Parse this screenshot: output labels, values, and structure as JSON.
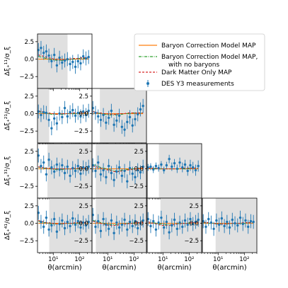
{
  "chart_data": {
    "type": "scatter",
    "title": "",
    "x_axis": {
      "label": "θ(arcmin)",
      "scale": "log",
      "range": [
        2.5,
        300
      ],
      "tick_values": [
        10,
        100
      ],
      "tick_labels": [
        "10¹",
        "10²"
      ]
    },
    "y_axis": {
      "range": [
        -4.2,
        3.6
      ],
      "tick_values": [
        2.5,
        0.0,
        -2.5
      ],
      "tick_labels": [
        "2.5",
        "0.0",
        "−2.5"
      ]
    },
    "row_labels": [
      "Δξ₊¹¹/σ_ξ",
      "Δξ₊²¹/σ_ξ",
      "Δξ₊³¹/σ_ξ",
      "Δξ₊⁴¹/σ_ξ"
    ],
    "colors": {
      "baryon": "#ff7f0e",
      "no_baryons": "#2ca02c",
      "dmo": "#d62728",
      "data": "#1f77b4",
      "shade": "#e0e0e0"
    },
    "legend": {
      "placement": "upper-right",
      "entries": [
        {
          "key": "baryon",
          "lines": [
            "Baryon Correction Model MAP"
          ]
        },
        {
          "key": "no_baryons",
          "lines": [
            "Baryon Correction Model MAP,",
            "with no baryons"
          ]
        },
        {
          "key": "dmo",
          "lines": [
            "Dark Matter Only MAP"
          ]
        },
        {
          "key": "data",
          "lines": [
            "DES Y3 measurements"
          ]
        }
      ]
    },
    "theta": [
      2.7,
      3.4,
      4.3,
      5.4,
      6.8,
      8.6,
      10.9,
      13.7,
      17.3,
      21.8,
      27.5,
      34.7,
      43.8,
      55.2,
      69.6,
      87.8,
      110.7,
      139.6,
      176.1,
      222.1
    ],
    "panels": [
      {
        "row": 0,
        "col": 0,
        "shade": [
          2.5,
          35
        ],
        "y": [
          1.3,
          1.6,
          0.9,
          1.1,
          0.5,
          -0.3,
          0.6,
          -0.9,
          0.2,
          -0.5,
          -0.2,
          0.0,
          -0.7,
          -0.4,
          -1.1,
          -0.3,
          -0.6,
          0.4,
          0.1,
          0.3
        ],
        "err": [
          1.0,
          1.0,
          1.0,
          1.0,
          1.0,
          1.0,
          1.0,
          1.0,
          1.0,
          1.0,
          1.0,
          1.0,
          1.0,
          1.0,
          1.0,
          1.0,
          1.0,
          1.0,
          1.0,
          1.0
        ],
        "baryon": [
          0.0,
          0.0,
          0.0,
          0.0,
          0.0,
          0.0,
          0.0,
          0.0,
          0.0,
          0.0,
          0.0,
          0.0,
          0.0,
          0.0,
          0.0,
          0.0,
          0.0,
          0.0,
          0.0,
          0.0
        ],
        "no_baryons": [
          0.4,
          0.3,
          0.2,
          0.1,
          0.0,
          -0.1,
          -0.1,
          -0.2,
          -0.2,
          -0.2,
          -0.2,
          -0.1,
          -0.1,
          0.0,
          0.0,
          0.1,
          0.1,
          0.1,
          0.1,
          0.1
        ],
        "dmo": [
          0.6,
          0.5,
          0.4,
          0.3,
          0.2,
          0.1,
          0.0,
          -0.1,
          -0.1,
          -0.1,
          -0.1,
          0.0,
          0.0,
          0.1,
          0.1,
          0.1,
          0.2,
          0.2,
          0.2,
          0.2
        ]
      },
      {
        "row": 1,
        "col": 0,
        "shade": [
          2.5,
          7
        ],
        "y": [
          0.3,
          -0.2,
          0.2,
          0.1,
          -0.9,
          -2.1,
          -0.7,
          -1.4,
          0.0,
          -0.5,
          0.8,
          -0.4,
          0.2,
          0.5,
          -0.3,
          0.1,
          -0.4,
          0.3,
          -0.2,
          0.4
        ],
        "err": [
          1.0,
          1.0,
          1.0,
          1.0,
          1.0,
          1.0,
          1.0,
          1.0,
          1.0,
          1.0,
          1.0,
          1.0,
          1.0,
          1.0,
          1.0,
          1.0,
          1.0,
          1.0,
          1.0,
          1.0
        ],
        "baryon": [
          0.0,
          0.0,
          0.0,
          0.0,
          0.0,
          0.0,
          0.0,
          0.0,
          0.0,
          0.0,
          0.0,
          0.0,
          0.0,
          0.0,
          0.0,
          0.0,
          0.0,
          0.0,
          0.0,
          0.0
        ],
        "no_baryons": [
          0.3,
          0.2,
          0.1,
          0.1,
          0.0,
          -0.1,
          -0.1,
          -0.1,
          -0.1,
          -0.1,
          -0.1,
          0.0,
          0.0,
          0.0,
          0.0,
          0.0,
          0.1,
          0.1,
          0.1,
          0.1
        ],
        "dmo": [
          0.4,
          0.3,
          0.2,
          0.2,
          0.1,
          0.0,
          0.0,
          -0.1,
          -0.1,
          0.0,
          0.0,
          0.0,
          0.0,
          0.1,
          0.1,
          0.1,
          0.1,
          0.1,
          0.2,
          0.2
        ]
      },
      {
        "row": 1,
        "col": 1,
        "shade": [
          5,
          300
        ],
        "y": [
          0.8,
          0.1,
          -0.4,
          -0.9,
          -0.2,
          -1.3,
          -0.6,
          0.4,
          -1.6,
          -1.0,
          -0.3,
          -1.9,
          -2.3,
          -1.2,
          -0.5,
          -1.7,
          -0.8,
          -0.1,
          0.6,
          1.1
        ],
        "err": [
          1.0,
          1.0,
          1.0,
          1.0,
          1.0,
          1.0,
          1.0,
          1.0,
          1.0,
          1.0,
          1.0,
          1.0,
          1.0,
          1.0,
          1.0,
          1.0,
          1.0,
          1.0,
          1.0,
          1.0
        ],
        "baryon": [
          0.0,
          0.0,
          0.0,
          0.0,
          0.0,
          0.0,
          0.0,
          0.0,
          0.0,
          0.0,
          0.0,
          0.0,
          0.0,
          0.0,
          0.0,
          0.0,
          0.0,
          0.0,
          0.0,
          0.0
        ],
        "no_baryons": [
          0.3,
          0.2,
          0.1,
          0.0,
          -0.1,
          -0.1,
          -0.2,
          -0.2,
          -0.2,
          -0.2,
          -0.1,
          -0.1,
          0.0,
          0.0,
          0.0,
          0.1,
          0.1,
          0.1,
          0.1,
          0.1
        ],
        "dmo": [
          0.3,
          0.2,
          0.1,
          0.1,
          0.0,
          0.0,
          -0.1,
          -0.1,
          -0.1,
          -0.1,
          0.0,
          0.0,
          0.0,
          0.1,
          0.1,
          0.1,
          0.1,
          0.1,
          0.1,
          0.1
        ]
      },
      {
        "row": 2,
        "col": 0,
        "shade": [
          6,
          300
        ],
        "y": [
          1.9,
          0.4,
          0.9,
          -0.8,
          1.3,
          0.2,
          -0.4,
          0.6,
          -0.1,
          0.5,
          -0.6,
          0.3,
          -1.0,
          0.1,
          -0.3,
          0.4,
          -0.7,
          0.2,
          0.0,
          0.3
        ],
        "err": [
          1.0,
          1.0,
          1.0,
          1.0,
          1.0,
          1.0,
          1.0,
          1.0,
          1.0,
          1.0,
          1.0,
          1.0,
          1.0,
          1.0,
          1.0,
          1.0,
          1.0,
          1.0,
          1.0,
          1.0
        ],
        "baryon": [
          0.0,
          0.0,
          0.0,
          0.0,
          0.0,
          0.0,
          0.0,
          0.0,
          0.0,
          0.0,
          0.0,
          0.0,
          0.0,
          0.0,
          0.0,
          0.0,
          0.0,
          0.0,
          0.0,
          0.0
        ],
        "no_baryons": [
          0.2,
          0.2,
          0.1,
          0.1,
          0.0,
          0.0,
          -0.1,
          -0.1,
          -0.1,
          -0.1,
          -0.1,
          0.0,
          0.0,
          0.0,
          0.0,
          0.0,
          0.0,
          0.1,
          0.1,
          0.1
        ],
        "dmo": [
          0.3,
          0.2,
          0.2,
          0.1,
          0.1,
          0.0,
          0.0,
          0.0,
          0.0,
          0.0,
          0.0,
          0.0,
          0.0,
          0.0,
          0.1,
          0.1,
          0.1,
          0.1,
          0.1,
          0.1
        ]
      },
      {
        "row": 2,
        "col": 1,
        "shade": [
          3.5,
          300
        ],
        "y": [
          0.5,
          -0.3,
          0.9,
          -0.8,
          -0.2,
          -1.2,
          0.4,
          -0.6,
          -1.6,
          -0.4,
          0.2,
          -1.0,
          -0.3,
          -1.8,
          0.1,
          -0.7,
          -1.2,
          -0.2,
          -0.5,
          0.3
        ],
        "err": [
          1.0,
          1.0,
          1.0,
          1.0,
          1.0,
          1.0,
          1.0,
          1.0,
          1.0,
          1.0,
          1.0,
          1.0,
          1.0,
          1.0,
          1.0,
          1.0,
          1.0,
          1.0,
          1.0,
          1.0
        ],
        "baryon": [
          0.0,
          0.0,
          0.0,
          0.0,
          0.0,
          0.0,
          0.0,
          0.0,
          0.0,
          0.0,
          0.0,
          0.0,
          0.0,
          0.0,
          0.0,
          0.0,
          0.0,
          0.0,
          0.0,
          0.0
        ],
        "no_baryons": [
          0.6,
          0.5,
          0.3,
          0.2,
          0.1,
          0.0,
          -0.1,
          -0.2,
          -0.3,
          -0.3,
          -0.3,
          -0.2,
          -0.2,
          -0.1,
          -0.1,
          0.0,
          0.0,
          0.1,
          0.1,
          0.1
        ],
        "dmo": [
          0.4,
          0.3,
          0.2,
          0.1,
          0.0,
          -0.1,
          -0.2,
          -0.3,
          -0.4,
          -0.4,
          -0.4,
          -0.3,
          -0.2,
          -0.2,
          -0.1,
          -0.1,
          0.0,
          0.0,
          0.1,
          0.1
        ]
      },
      {
        "row": 2,
        "col": 2,
        "shade": [
          7,
          300
        ],
        "y": [
          0.2,
          0.3,
          -0.1,
          0.4,
          0.1,
          0.6,
          -0.2,
          0.5,
          1.4,
          0.3,
          0.8,
          0.0,
          0.9,
          0.2,
          0.6,
          -0.3,
          0.5,
          0.2,
          -0.2,
          0.4
        ],
        "err": [
          0.5,
          0.5,
          0.5,
          0.5,
          0.5,
          0.5,
          0.5,
          0.5,
          0.6,
          0.6,
          0.6,
          0.6,
          0.7,
          0.7,
          0.7,
          0.7,
          0.8,
          0.8,
          0.8,
          0.8
        ],
        "baryon": [
          0.0,
          0.0,
          0.0,
          0.0,
          0.0,
          0.0,
          0.0,
          0.0,
          0.0,
          0.0,
          0.0,
          0.0,
          0.0,
          0.0,
          0.0,
          0.0,
          0.0,
          0.0,
          0.0,
          0.0
        ],
        "no_baryons": [
          0.1,
          0.1,
          0.1,
          0.0,
          0.0,
          0.0,
          0.0,
          0.0,
          0.0,
          0.0,
          0.0,
          0.0,
          0.0,
          0.0,
          0.0,
          0.0,
          0.1,
          0.1,
          0.1,
          0.1
        ],
        "dmo": [
          0.1,
          0.1,
          0.1,
          0.1,
          0.0,
          0.0,
          0.0,
          0.0,
          0.0,
          0.0,
          0.0,
          0.0,
          0.0,
          0.1,
          0.1,
          0.1,
          0.1,
          0.1,
          0.1,
          0.1
        ]
      },
      {
        "row": 3,
        "col": 0,
        "shade": [
          7,
          300
        ],
        "y": [
          1.5,
          0.2,
          -0.5,
          0.8,
          -0.9,
          -0.3,
          0.6,
          -1.2,
          -0.1,
          0.4,
          -0.7,
          0.2,
          -0.4,
          0.7,
          -0.2,
          0.3,
          -0.6,
          0.1,
          -0.3,
          0.2
        ],
        "err": [
          1.0,
          1.0,
          1.0,
          1.0,
          1.0,
          1.0,
          1.0,
          1.0,
          1.0,
          1.0,
          1.0,
          1.0,
          1.0,
          1.0,
          1.0,
          1.0,
          1.0,
          1.0,
          1.0,
          1.0
        ],
        "baryon": [
          0.0,
          0.0,
          0.0,
          0.0,
          0.0,
          0.0,
          0.0,
          0.0,
          0.0,
          0.0,
          0.0,
          0.0,
          0.0,
          0.0,
          0.0,
          0.0,
          0.0,
          0.0,
          0.0,
          0.0
        ],
        "no_baryons": [
          0.3,
          0.2,
          0.1,
          0.1,
          0.0,
          -0.1,
          -0.1,
          -0.1,
          -0.1,
          -0.1,
          -0.1,
          0.0,
          0.0,
          0.0,
          0.0,
          0.0,
          0.1,
          0.1,
          0.1,
          0.1
        ],
        "dmo": [
          0.4,
          0.3,
          0.2,
          0.1,
          0.1,
          0.0,
          0.0,
          -0.1,
          -0.1,
          -0.1,
          0.0,
          0.0,
          0.0,
          0.0,
          0.1,
          0.1,
          0.1,
          0.1,
          0.1,
          0.1
        ]
      },
      {
        "row": 3,
        "col": 1,
        "shade": [
          3.5,
          300
        ],
        "y": [
          1.2,
          -0.5,
          0.3,
          -1.1,
          0.6,
          -0.2,
          -0.8,
          0.4,
          -1.4,
          0.1,
          -0.6,
          -0.2,
          0.5,
          -0.9,
          0.2,
          -0.4,
          0.3,
          -0.7,
          0.0,
          0.4
        ],
        "err": [
          1.0,
          1.0,
          1.0,
          1.0,
          1.0,
          1.0,
          1.0,
          1.0,
          1.0,
          1.0,
          1.0,
          1.0,
          1.0,
          1.0,
          1.0,
          1.0,
          1.0,
          1.0,
          1.0,
          1.0
        ],
        "baryon": [
          0.0,
          0.0,
          0.0,
          0.0,
          0.0,
          0.0,
          0.0,
          0.0,
          0.0,
          0.0,
          0.0,
          0.0,
          0.0,
          0.0,
          0.0,
          0.0,
          0.0,
          0.0,
          0.0,
          0.0
        ],
        "no_baryons": [
          0.4,
          0.3,
          0.2,
          0.1,
          0.0,
          -0.1,
          -0.2,
          -0.2,
          -0.2,
          -0.2,
          -0.2,
          -0.1,
          -0.1,
          0.0,
          0.0,
          0.0,
          0.1,
          0.1,
          0.1,
          0.1
        ],
        "dmo": [
          0.3,
          0.2,
          0.1,
          0.0,
          -0.1,
          -0.2,
          -0.3,
          -0.3,
          -0.3,
          -0.3,
          -0.2,
          -0.2,
          -0.1,
          -0.1,
          0.0,
          0.0,
          0.1,
          0.1,
          0.1,
          0.1
        ]
      },
      {
        "row": 3,
        "col": 2,
        "shade": [
          8,
          300
        ],
        "y": [
          0.6,
          -0.4,
          0.3,
          -0.9,
          0.1,
          0.8,
          -0.6,
          0.2,
          -1.3,
          -0.3,
          0.5,
          -0.8,
          0.1,
          -0.5,
          0.4,
          -0.2,
          0.6,
          -0.1,
          0.2,
          0.5
        ],
        "err": [
          1.0,
          1.0,
          1.0,
          1.0,
          1.0,
          1.0,
          1.0,
          1.0,
          1.0,
          1.0,
          1.0,
          1.0,
          1.0,
          1.0,
          1.0,
          1.0,
          1.0,
          1.0,
          1.0,
          1.0
        ],
        "baryon": [
          0.0,
          0.0,
          0.0,
          0.0,
          0.0,
          0.0,
          0.0,
          0.0,
          0.0,
          0.0,
          0.0,
          0.0,
          0.0,
          0.0,
          0.0,
          0.0,
          0.0,
          0.0,
          0.0,
          0.0
        ],
        "no_baryons": [
          0.2,
          0.1,
          0.1,
          0.0,
          -0.1,
          -0.1,
          -0.2,
          -0.2,
          -0.2,
          -0.2,
          -0.1,
          -0.1,
          0.0,
          0.0,
          0.0,
          0.0,
          0.1,
          0.1,
          0.1,
          0.1
        ],
        "dmo": [
          0.2,
          0.1,
          0.0,
          -0.1,
          -0.2,
          -0.3,
          -0.3,
          -0.3,
          -0.3,
          -0.2,
          -0.2,
          -0.1,
          -0.1,
          0.0,
          0.0,
          0.0,
          0.1,
          0.1,
          0.1,
          0.1
        ]
      },
      {
        "row": 3,
        "col": 3,
        "shade": [
          8,
          300
        ],
        "y": [
          0.3,
          -0.5,
          0.6,
          0.1,
          -0.8,
          0.4,
          -0.2,
          0.7,
          -0.4,
          0.2,
          -0.6,
          0.5,
          0.0,
          -0.3,
          0.8,
          -0.1,
          0.4,
          -0.5,
          0.3,
          0.2
        ],
        "err": [
          1.0,
          1.0,
          1.0,
          1.0,
          1.0,
          1.0,
          1.0,
          1.0,
          1.0,
          1.0,
          1.0,
          1.0,
          1.0,
          1.0,
          1.0,
          1.0,
          1.0,
          1.0,
          1.0,
          1.0
        ],
        "baryon": [
          0.0,
          0.0,
          0.0,
          0.0,
          0.0,
          0.0,
          0.0,
          0.0,
          0.0,
          0.0,
          0.0,
          0.0,
          0.0,
          0.0,
          0.0,
          0.0,
          0.0,
          0.0,
          0.0,
          0.0
        ],
        "no_baryons": [
          0.1,
          0.1,
          0.0,
          0.0,
          0.0,
          -0.1,
          -0.1,
          -0.1,
          -0.1,
          -0.1,
          -0.1,
          0.0,
          0.0,
          0.0,
          0.0,
          0.0,
          0.0,
          0.1,
          0.1,
          0.1
        ],
        "dmo": [
          0.2,
          0.1,
          0.1,
          0.0,
          0.0,
          -0.1,
          -0.1,
          -0.1,
          -0.1,
          -0.1,
          0.0,
          0.0,
          0.0,
          0.0,
          0.0,
          0.1,
          0.1,
          0.1,
          0.1,
          0.1
        ]
      }
    ]
  }
}
